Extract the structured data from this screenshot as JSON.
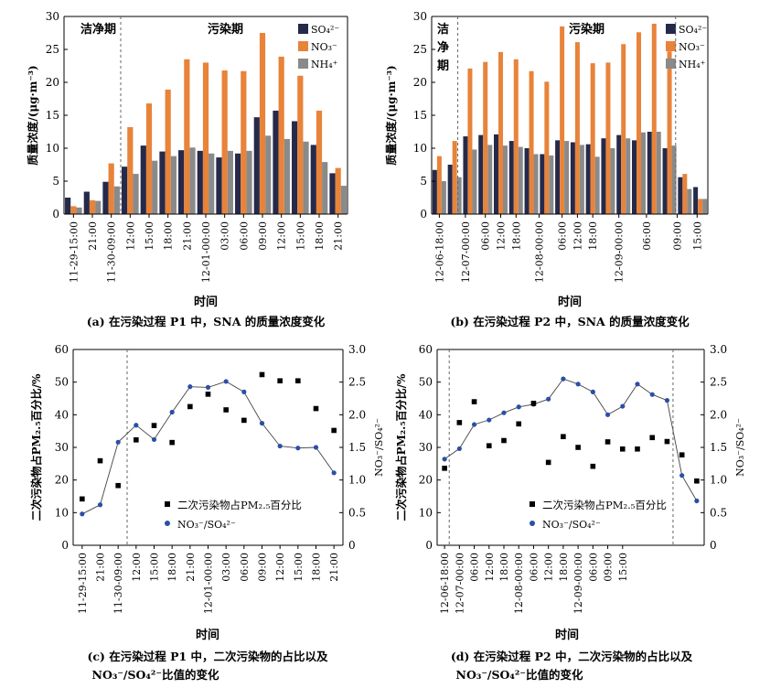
{
  "colors": {
    "so4": "#252a4a",
    "no3": "#e8833a",
    "nh4": "#8a8a8a",
    "ratio": "#2b4fa8",
    "secondary": "#000000",
    "line": "#444444"
  },
  "panels": {
    "a": {
      "caption": "(a) 在污染过程 P1 中，SNA 的质量浓度变化",
      "xlabel": "时间",
      "ylabel": "质量浓度/(μg·m⁻³)",
      "period_labels": [
        "洁净期",
        "污染期"
      ],
      "legend": [
        "SO₄²⁻",
        "NO₃⁻",
        "NH₄⁺"
      ],
      "y_ticks": [
        "0",
        "5",
        "10",
        "15",
        "20",
        "25",
        "30"
      ],
      "x_ticks": [
        "11-29-15:00",
        "21:00",
        "11-30-09:00",
        "12:00",
        "15:00",
        "18:00",
        "21:00",
        "12-01-00:00",
        "03:00",
        "06:00",
        "09:00",
        "12:00",
        "15:00",
        "18:00",
        "21:00"
      ]
    },
    "b": {
      "caption": "(b) 在污染过程 P2 中，SNA 的质量浓度变化",
      "xlabel": "时间",
      "ylabel": "质量浓度/(μg·m⁻³)",
      "period_labels": [
        "洁",
        "净",
        "期",
        "污染期"
      ],
      "legend": [
        "SO₄²⁻",
        "NO₃⁻",
        "NH₄⁺"
      ],
      "y_ticks": [
        "0",
        "5",
        "10",
        "15",
        "20",
        "25",
        "30"
      ],
      "x_ticks": [
        "12-06-18:00",
        "12-07-00:00",
        "06:00",
        "12:00",
        "18:00",
        "12-08-00:00",
        "06:00",
        "12:00",
        "18:00",
        "12-09-00:00",
        "06:00",
        "09:00",
        "15:00"
      ]
    },
    "c": {
      "caption_line1": "(c) 在污染过程 P1 中，二次污染物的占比以及",
      "caption_line2": "NO₃⁻/SO₄²⁻比值的变化",
      "xlabel": "时间",
      "ylabel": "二次污染物占PM₂.₅百分比/%",
      "y2label": "NO₃⁻/SO₄²⁻",
      "legend": [
        "二次污染物占PM₂.₅百分比",
        "NO₃⁻/SO₄²⁻"
      ],
      "y_ticks": [
        "0",
        "10",
        "20",
        "30",
        "40",
        "50",
        "60"
      ],
      "y2_ticks": [
        "0",
        "0.5",
        "1.0",
        "1.5",
        "2.0",
        "2.5",
        "3.0"
      ],
      "x_ticks": [
        "11-29-15:00",
        "21:00",
        "11-30-09:00",
        "12:00",
        "15:00",
        "18:00",
        "21:00",
        "12-01-00:00",
        "03:00",
        "06:00",
        "09:00",
        "12:00",
        "15:00",
        "18:00",
        "21:00"
      ]
    },
    "d": {
      "caption_line1": "(d) 在污染过程 P2 中，二次污染物的占比以及",
      "caption_line2": "NO₃⁻/SO₄²⁻比值的变化",
      "xlabel": "时间",
      "ylabel": "二次污染物占PM₂.₅百分比/%",
      "y2label": "NO₃⁻/SO₄²⁻",
      "legend": [
        "二次污染物占PM₂.₅百分比",
        "NO₃⁻/SO₄²⁻"
      ],
      "y_ticks": [
        "0",
        "10",
        "20",
        "30",
        "40",
        "50",
        "60"
      ],
      "y2_ticks": [
        "0",
        "0.5",
        "1.0",
        "1.5",
        "2.0",
        "2.5",
        "3.0"
      ],
      "x_ticks": [
        "12-06-18:00",
        "12-07-00:00",
        "06:00",
        "12:00",
        "18:00",
        "12-08-00:00",
        "06:00",
        "12:00",
        "18:00",
        "12-09-00:00",
        "06:00",
        "09:00",
        "15:00"
      ]
    }
  },
  "chart_data": [
    {
      "panel": "a",
      "type": "bar",
      "ylim": [
        0,
        30
      ],
      "divider_after_index": 2,
      "series": [
        {
          "name": "SO₄²⁻",
          "values": [
            2.5,
            3.4,
            4.9,
            7.2,
            10.4,
            9.5,
            9.7,
            9.6,
            8.6,
            9.2,
            14.7,
            15.7,
            14.1,
            10.5,
            6.2
          ]
        },
        {
          "name": "NO₃⁻",
          "values": [
            1.2,
            2.1,
            7.7,
            13.2,
            16.8,
            18.9,
            23.5,
            23.0,
            21.8,
            21.7,
            27.5,
            23.9,
            21.0,
            15.7,
            7.0
          ]
        },
        {
          "name": "NH₄⁺",
          "values": [
            1.0,
            2.0,
            4.2,
            6.1,
            8.1,
            8.8,
            10.1,
            9.2,
            9.6,
            9.6,
            11.9,
            11.4,
            11.0,
            7.9,
            4.3
          ]
        }
      ]
    },
    {
      "panel": "b",
      "type": "bar",
      "ylim": [
        0,
        30
      ],
      "divider_after_index": 1,
      "divider2_after_index": 23,
      "series": [
        {
          "name": "SO₄²⁻",
          "values": [
            6.7,
            7.5,
            11.8,
            12.0,
            12.1,
            11.1,
            10.0,
            9.1,
            11.2,
            10.9,
            10.6,
            11.5,
            12.0,
            11.2,
            12.5,
            10.0,
            5.6,
            4.1
          ]
        },
        {
          "name": "NO₃⁻",
          "values": [
            8.8,
            11.1,
            22.1,
            23.1,
            24.6,
            23.5,
            21.7,
            20.1,
            28.5,
            26.1,
            22.9,
            23.0,
            25.8,
            27.6,
            28.9,
            24.7,
            6.1,
            2.3
          ]
        },
        {
          "name": "NH₄⁺",
          "values": [
            5.0,
            5.6,
            9.8,
            10.5,
            10.4,
            10.2,
            9.1,
            8.9,
            11.1,
            10.5,
            8.7,
            10.0,
            11.5,
            12.4,
            12.5,
            10.4,
            3.8,
            2.3
          ]
        }
      ]
    },
    {
      "panel": "c",
      "type": "scatter",
      "ylim": [
        0,
        60
      ],
      "y2lim": [
        0,
        3.0
      ],
      "divider_after_index": 2,
      "series": [
        {
          "name": "二次污染物占PM₂.₅百分比",
          "axis": "left",
          "values": [
            14.2,
            25.9,
            18.3,
            32.3,
            36.7,
            31.5,
            42.5,
            46.3,
            41.5,
            38.3,
            52.3,
            50.4,
            50.4,
            41.9,
            35.2
          ]
        },
        {
          "name": "NO₃⁻/SO₄²⁻",
          "axis": "right",
          "values": [
            0.48,
            0.62,
            1.58,
            1.84,
            1.62,
            2.04,
            2.43,
            2.42,
            2.51,
            2.35,
            1.87,
            1.52,
            1.49,
            1.5,
            1.11
          ]
        }
      ]
    },
    {
      "panel": "d",
      "type": "scatter",
      "ylim": [
        0,
        60
      ],
      "y2lim": [
        0,
        3.0
      ],
      "divider_after_index": 0,
      "divider2_after_index": 14,
      "series": [
        {
          "name": "二次污染物占PM₂.₅百分比",
          "axis": "left",
          "values": [
            23.6,
            37.6,
            44.0,
            30.5,
            32.1,
            37.2,
            43.5,
            25.4,
            33.3,
            30.0,
            24.2,
            31.7,
            29.5,
            29.5,
            33.0,
            31.8,
            27.7,
            19.7
          ]
        },
        {
          "name": "NO₃⁻/SO₄²⁻",
          "axis": "right",
          "values": [
            1.32,
            1.48,
            1.85,
            1.92,
            2.03,
            2.12,
            2.16,
            2.24,
            2.55,
            2.47,
            2.35,
            2.0,
            2.13,
            2.47,
            2.31,
            2.22,
            1.07,
            0.68
          ]
        }
      ]
    }
  ]
}
